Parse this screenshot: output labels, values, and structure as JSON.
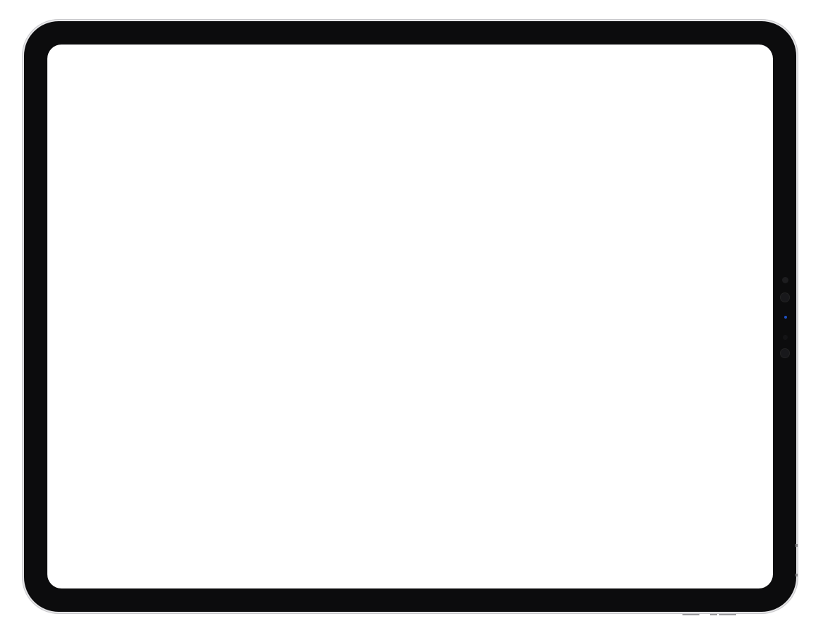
{
  "device": {
    "type": "tablet",
    "orientation": "landscape",
    "bezel_color": "#0c0c0d",
    "frame_color": "#e2e2e4",
    "screen_color": "#ffffff"
  },
  "screen": {
    "content": ""
  },
  "icons": {
    "front_camera": "camera-icon",
    "sensors": "sensor-icon"
  }
}
